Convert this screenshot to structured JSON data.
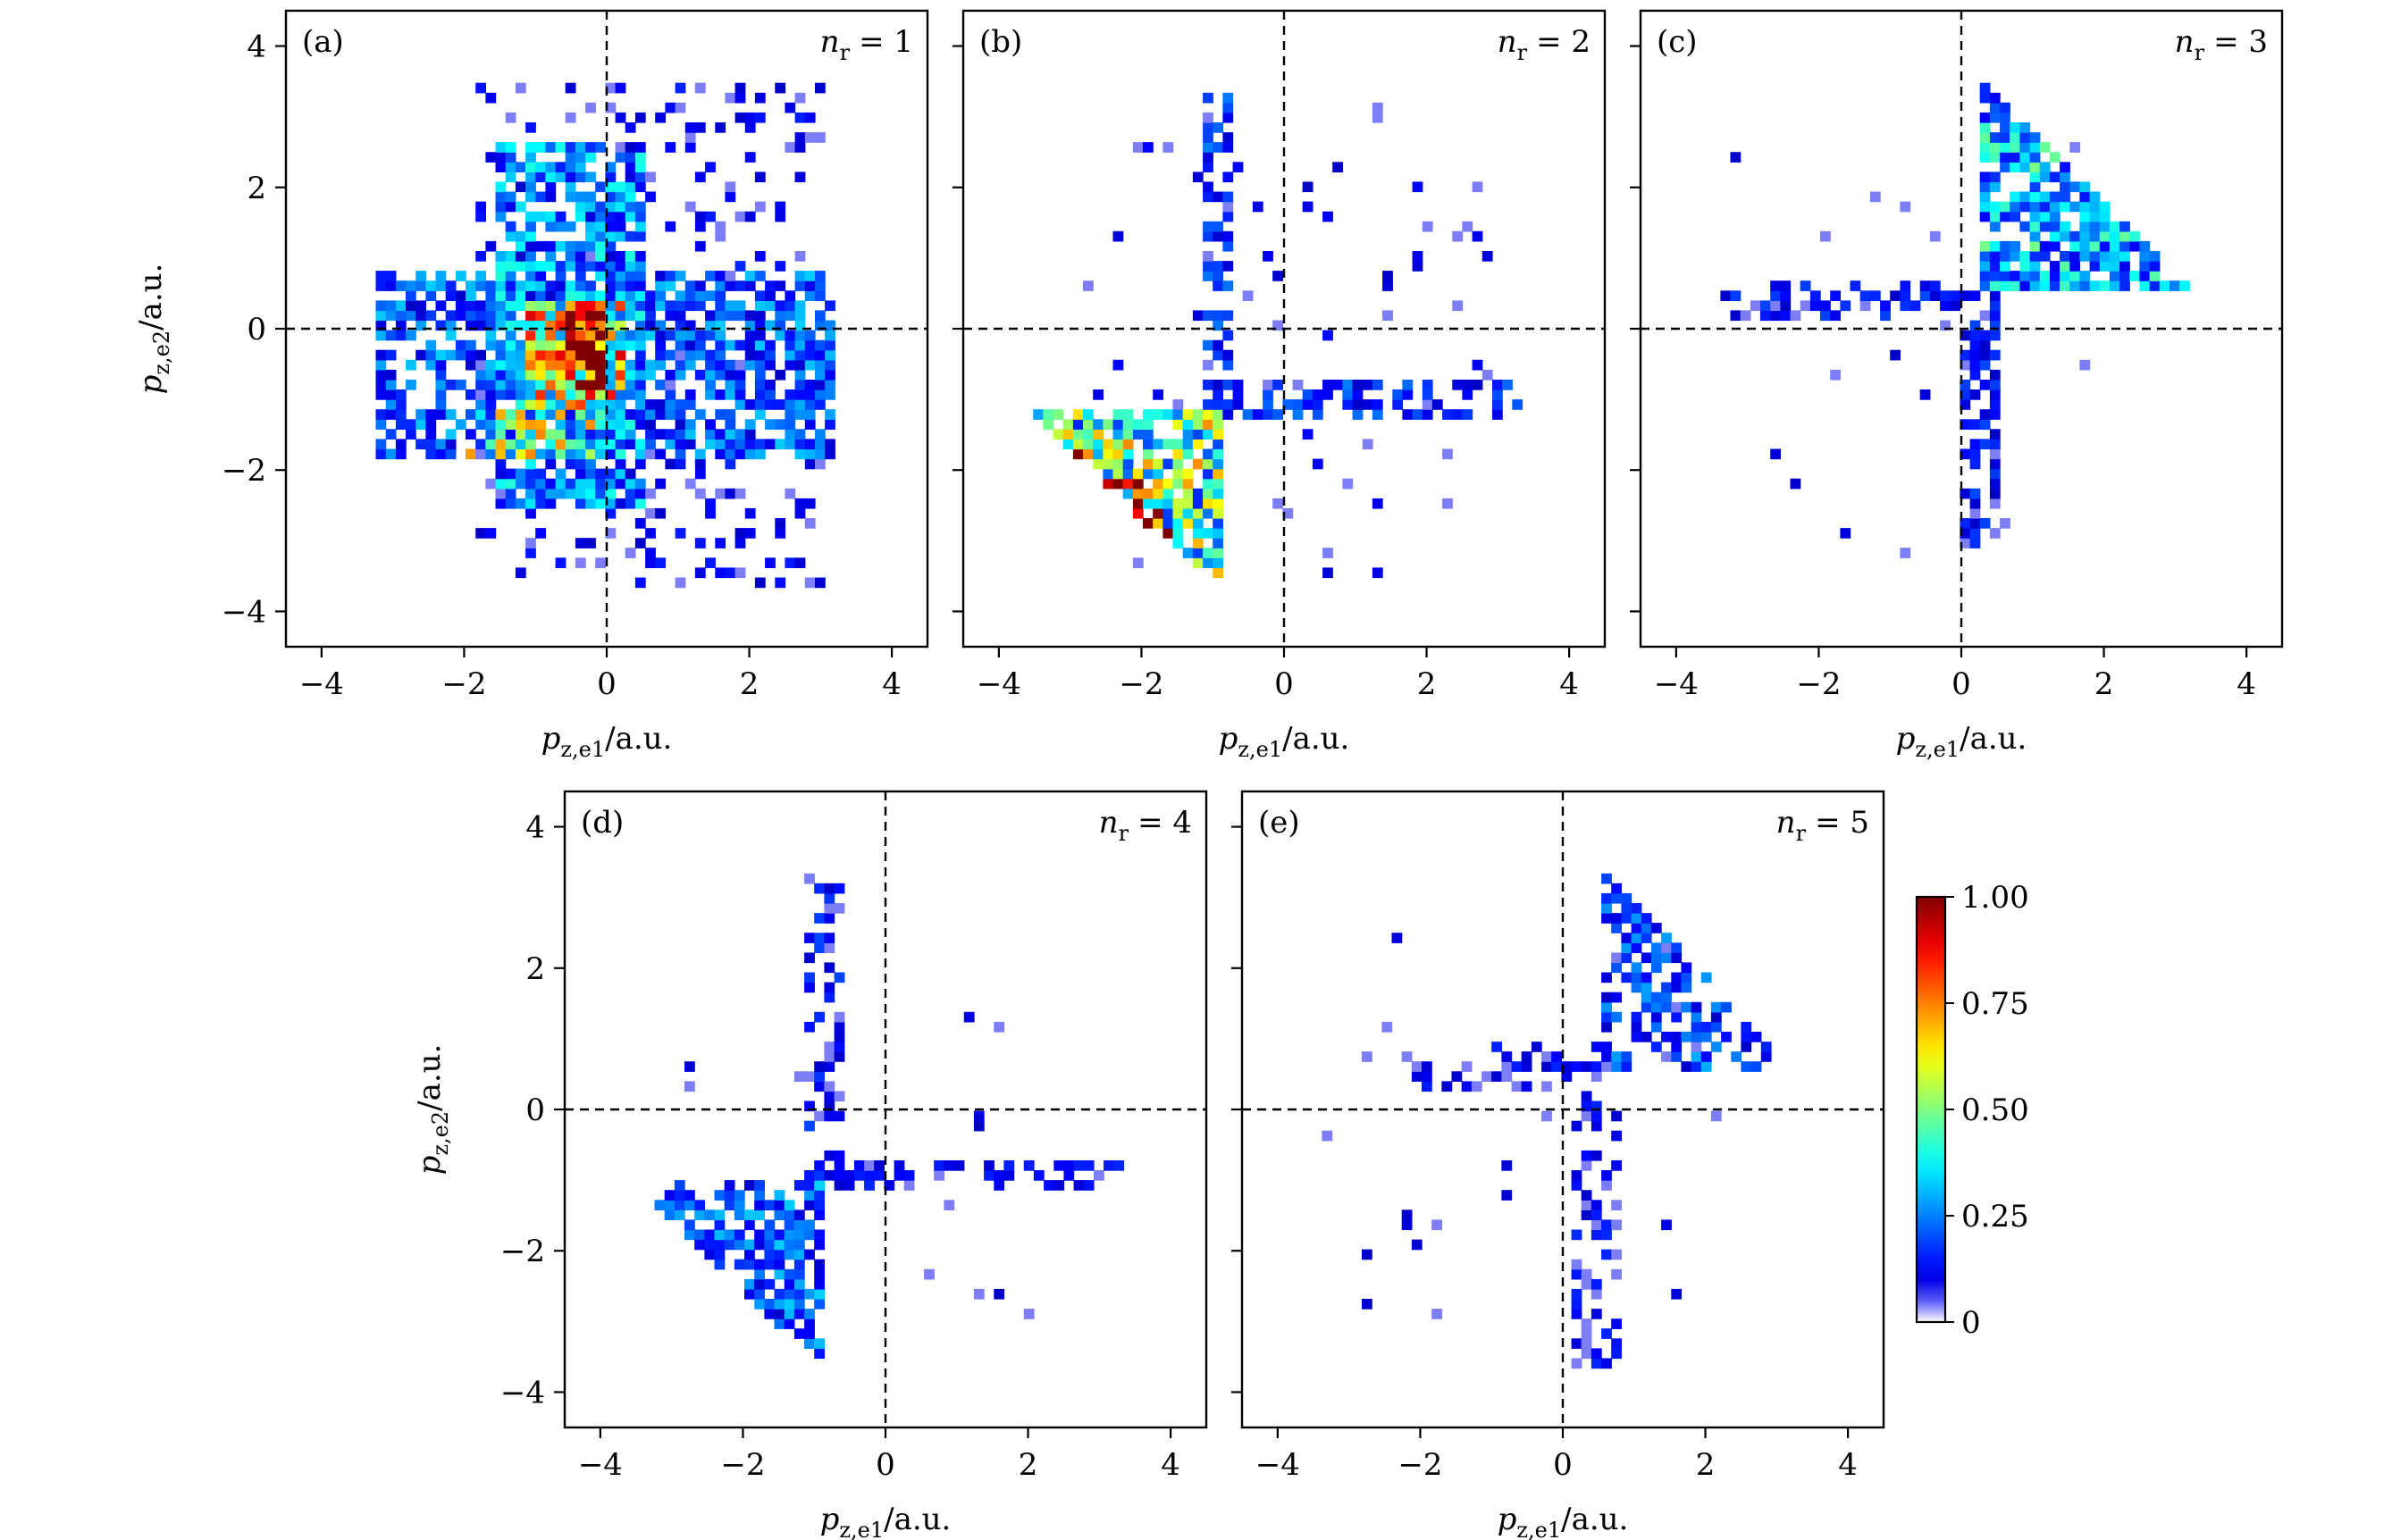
{
  "figure": {
    "colorbar": {
      "label_min": "0",
      "ticks": [
        "0",
        "0.25",
        "0.50",
        "0.75",
        "1.00"
      ],
      "tick_values": [
        0,
        0.25,
        0.5,
        0.75,
        1.0
      ],
      "colormap": "jet"
    },
    "axis_text": {
      "xlabel": "p_{z,e1}/a.u.",
      "ylabel": "p_{z,e2}/a.u.",
      "x_sym": "p",
      "x_sub": "z,e1",
      "x_unit": "/a.u.",
      "y_sym": "p",
      "y_sub": "z,e2",
      "y_unit": "/a.u."
    },
    "tick_labels": [
      "−4",
      "−2",
      "0",
      "2",
      "4"
    ]
  },
  "chart_data": [
    {
      "type": "heatmap",
      "panel": "(a)",
      "annotation": "n_r = 1",
      "nr_symbol": "n",
      "nr_sub": "r",
      "nr_value": "= 1",
      "xlabel": "p_{z,e1}/a.u.",
      "ylabel": "p_{z,e2}/a.u.",
      "xlim": [
        -4.5,
        4.5
      ],
      "ylim": [
        -4.5,
        4.5
      ],
      "xticks": [
        -4,
        -2,
        0,
        2,
        4
      ],
      "yticks": [
        -4,
        -2,
        0,
        2,
        4
      ],
      "show_ylabel": true,
      "show_xlabel": true,
      "reference_lines": {
        "x": 0,
        "y": 0
      },
      "distribution": [
        {
          "shape": "box",
          "x": [
            -1.6,
            0.6
          ],
          "y": [
            -2.6,
            2.6
          ],
          "density": 0.7,
          "intensity": 0.25
        },
        {
          "shape": "box",
          "x": [
            -3.2,
            3.2
          ],
          "y": [
            -1.8,
            0.8
          ],
          "density": 0.6,
          "intensity": 0.2
        },
        {
          "shape": "box",
          "x": [
            -1.2,
            0.2
          ],
          "y": [
            -1.2,
            0.4
          ],
          "density": 0.9,
          "intensity": 0.55
        },
        {
          "shape": "box",
          "x": [
            -0.6,
            0.0
          ],
          "y": [
            -0.9,
            0.3
          ],
          "density": 0.9,
          "intensity": 0.85
        },
        {
          "shape": "box",
          "x": [
            -2.0,
            0.0
          ],
          "y": [
            -1.9,
            -1.2
          ],
          "density": 0.7,
          "intensity": 0.45
        },
        {
          "shape": "box",
          "x": [
            -1.8,
            3.0
          ],
          "y": [
            -3.6,
            3.5
          ],
          "density": 0.18,
          "intensity": 0.1
        }
      ]
    },
    {
      "type": "heatmap",
      "panel": "(b)",
      "annotation": "n_r = 2",
      "nr_symbol": "n",
      "nr_sub": "r",
      "nr_value": "= 2",
      "xlabel": "p_{z,e1}/a.u.",
      "ylabel": "p_{z,e2}/a.u.",
      "xlim": [
        -4.5,
        4.5
      ],
      "ylim": [
        -4.5,
        4.5
      ],
      "xticks": [
        -4,
        -2,
        0,
        2,
        4
      ],
      "yticks": [
        -4,
        -2,
        0,
        2,
        4
      ],
      "show_ylabel": false,
      "show_xlabel": true,
      "reference_lines": {
        "x": 0,
        "y": 0
      },
      "distribution": [
        {
          "shape": "triangle",
          "vertices": [
            [
              -3.6,
              -1.1
            ],
            [
              -0.9,
              -1.1
            ],
            [
              -0.9,
              -3.6
            ]
          ],
          "density": 0.85,
          "intensity": 0.45
        },
        {
          "shape": "triangle",
          "vertices": [
            [
              -3.4,
              -1.4
            ],
            [
              -2.0,
              -2.2
            ],
            [
              -1.2,
              -3.4
            ]
          ],
          "density": 0.7,
          "intensity": 0.8
        },
        {
          "shape": "box",
          "x": [
            -1.1,
            -0.7
          ],
          "y": [
            -1.1,
            3.3
          ],
          "density": 0.55,
          "intensity": 0.15
        },
        {
          "shape": "box",
          "x": [
            -1.0,
            3.4
          ],
          "y": [
            -1.3,
            -0.7
          ],
          "density": 0.5,
          "intensity": 0.15
        },
        {
          "shape": "box",
          "x": [
            -2.8,
            3.0
          ],
          "y": [
            -3.5,
            3.2
          ],
          "density": 0.03,
          "intensity": 0.08
        }
      ]
    },
    {
      "type": "heatmap",
      "panel": "(c)",
      "annotation": "n_r = 3",
      "nr_symbol": "n",
      "nr_sub": "r",
      "nr_value": "= 3",
      "xlabel": "p_{z,e1}/a.u.",
      "ylabel": "p_{z,e2}/a.u.",
      "xlim": [
        -4.5,
        4.5
      ],
      "ylim": [
        -4.5,
        4.5
      ],
      "xticks": [
        -4,
        -2,
        0,
        2,
        4
      ],
      "yticks": [
        -4,
        -2,
        0,
        2,
        4
      ],
      "show_ylabel": false,
      "show_xlabel": true,
      "reference_lines": {
        "x": 0,
        "y": 0
      },
      "distribution": [
        {
          "shape": "triangle",
          "vertices": [
            [
              0.3,
              3.5
            ],
            [
              0.3,
              0.5
            ],
            [
              3.3,
              0.5
            ]
          ],
          "density": 0.8,
          "intensity": 0.3
        },
        {
          "shape": "box",
          "x": [
            -3.4,
            0.5
          ],
          "y": [
            0.1,
            0.7
          ],
          "density": 0.45,
          "intensity": 0.12
        },
        {
          "shape": "box",
          "x": [
            0.0,
            0.6
          ],
          "y": [
            -3.1,
            0.2
          ],
          "density": 0.55,
          "intensity": 0.12
        },
        {
          "shape": "box",
          "x": [
            -3.5,
            2.5
          ],
          "y": [
            -3.4,
            2.6
          ],
          "density": 0.015,
          "intensity": 0.06
        }
      ]
    },
    {
      "type": "heatmap",
      "panel": "(d)",
      "annotation": "n_r = 4",
      "nr_symbol": "n",
      "nr_sub": "r",
      "nr_value": "= 4",
      "xlabel": "p_{z,e1}/a.u.",
      "ylabel": "p_{z,e2}/a.u.",
      "xlim": [
        -4.5,
        4.5
      ],
      "ylim": [
        -4.5,
        4.5
      ],
      "xticks": [
        -4,
        -2,
        0,
        2,
        4
      ],
      "yticks": [
        -4,
        -2,
        0,
        2,
        4
      ],
      "show_ylabel": true,
      "show_xlabel": true,
      "reference_lines": {
        "x": 0,
        "y": 0
      },
      "distribution": [
        {
          "shape": "triangle",
          "vertices": [
            [
              -3.6,
              -1.0
            ],
            [
              -0.9,
              -1.0
            ],
            [
              -0.9,
              -3.6
            ]
          ],
          "density": 0.7,
          "intensity": 0.2
        },
        {
          "shape": "box",
          "x": [
            -1.1,
            -0.6
          ],
          "y": [
            -1.0,
            3.3
          ],
          "density": 0.45,
          "intensity": 0.12
        },
        {
          "shape": "box",
          "x": [
            -1.0,
            3.3
          ],
          "y": [
            -1.1,
            -0.7
          ],
          "density": 0.4,
          "intensity": 0.1
        },
        {
          "shape": "box",
          "x": [
            -3.2,
            2.6
          ],
          "y": [
            -3.0,
            2.4
          ],
          "density": 0.012,
          "intensity": 0.06
        }
      ]
    },
    {
      "type": "heatmap",
      "panel": "(e)",
      "annotation": "n_r = 5",
      "nr_symbol": "n",
      "nr_sub": "r",
      "nr_value": "= 5",
      "xlabel": "p_{z,e1}/a.u.",
      "ylabel": "p_{z,e2}/a.u.",
      "xlim": [
        -4.5,
        4.5
      ],
      "ylim": [
        -4.5,
        4.5
      ],
      "xticks": [
        -4,
        -2,
        0,
        2,
        4
      ],
      "yticks": [
        -4,
        -2,
        0,
        2,
        4
      ],
      "show_ylabel": false,
      "show_xlabel": true,
      "reference_lines": {
        "x": 0,
        "y": 0
      },
      "distribution": [
        {
          "shape": "triangle",
          "vertices": [
            [
              0.6,
              3.4
            ],
            [
              0.6,
              0.6
            ],
            [
              3.2,
              0.6
            ]
          ],
          "density": 0.55,
          "intensity": 0.18
        },
        {
          "shape": "box",
          "x": [
            -2.2,
            0.6
          ],
          "y": [
            0.2,
            0.9
          ],
          "density": 0.35,
          "intensity": 0.1
        },
        {
          "shape": "box",
          "x": [
            0.1,
            0.8
          ],
          "y": [
            -3.6,
            0.2
          ],
          "density": 0.4,
          "intensity": 0.1
        },
        {
          "shape": "box",
          "x": [
            -3.4,
            2.4
          ],
          "y": [
            -3.0,
            2.9
          ],
          "density": 0.01,
          "intensity": 0.06
        }
      ]
    }
  ]
}
